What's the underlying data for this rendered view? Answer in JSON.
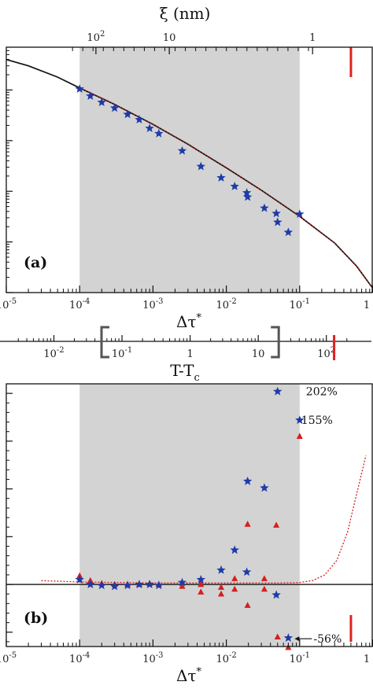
{
  "chart_data": [
    {
      "panel": "a",
      "type": "scatter",
      "panel_label": "(a)",
      "xlabel": "Δτ*",
      "x2label": "ξ (nm)",
      "x2_tick_labels": [
        "10²",
        "10",
        "1"
      ],
      "x2_ticks_at_x": [
        0.0001667,
        0.00167,
        0.15
      ],
      "x_tick_labels": [
        "10⁻⁵",
        "10⁻⁴",
        "10⁻³",
        "10⁻²",
        "10⁻¹",
        "1"
      ],
      "x_ticks": [
        1e-05,
        0.0001,
        0.001,
        0.01,
        0.1,
        1
      ],
      "xscale": "log",
      "xlim": [
        1e-05,
        1
      ],
      "yscale": "log",
      "ylim": [
        1e-06,
        0.07
      ],
      "shaded_region_x": [
        0.0001,
        0.1
      ],
      "marker_x": 0.5,
      "curve": {
        "color": "#111111",
        "x": [
          1e-05,
          2e-05,
          5e-05,
          0.0001,
          0.0003,
          0.001,
          0.003,
          0.01,
          0.03,
          0.1,
          0.3,
          0.6,
          1.0
        ],
        "y": [
          0.04,
          0.03,
          0.018,
          0.011,
          0.0052,
          0.0021,
          0.00085,
          0.00029,
          0.000105,
          3.2e-05,
          9.5e-06,
          3.3e-06,
          1.2e-06
        ]
      },
      "series": [
        {
          "color": "#1e3ba8",
          "marker": "star",
          "x": [
            0.0001,
            0.00014,
            0.0002,
            0.0003,
            0.00045,
            0.00065,
            0.0009,
            0.0012,
            0.0025,
            0.0045,
            0.0085,
            0.013,
            0.019,
            0.0195,
            0.033,
            0.048,
            0.05,
            0.07,
            0.1
          ],
          "y": [
            0.0105,
            0.0076,
            0.0057,
            0.0044,
            0.0033,
            0.0026,
            0.00175,
            0.00138,
            0.00063,
            0.00031,
            0.000185,
            0.000125,
            9.35e-05,
            7.7e-05,
            4.65e-05,
            3.65e-05,
            2.45e-05,
            1.55e-05,
            3.55e-05
          ]
        }
      ]
    },
    {
      "panel": "t",
      "type": "axis",
      "xlabel": "T-T",
      "xlabel_sub": "c",
      "xscale": "log",
      "xlim": [
        0.002,
        300
      ],
      "x_tick_labels": [
        "10⁻²",
        "10⁻¹",
        "1",
        "10",
        "10²"
      ],
      "x_ticks": [
        0.01,
        0.1,
        1,
        10,
        100
      ],
      "bracket_x": [
        0.05,
        20
      ],
      "marker_x": 130
    },
    {
      "panel": "b",
      "type": "scatter",
      "panel_label": "(b)",
      "xlabel": "Δτ*",
      "xscale": "log",
      "xlim": [
        1e-05,
        1
      ],
      "x_tick_labels": [
        "10⁻⁵",
        "10⁻⁴",
        "10⁻³",
        "10⁻²",
        "10⁻¹",
        "1"
      ],
      "x_ticks": [
        1e-05,
        0.0001,
        0.001,
        0.01,
        0.1,
        1
      ],
      "ylim": [
        -65,
        210
      ],
      "shaded_region_x": [
        0.0001,
        0.1
      ],
      "marker_x": 0.5,
      "annotations": [
        {
          "text": "202%",
          "x": 0.1,
          "y": 202
        },
        {
          "text": "155%",
          "x": 0.1,
          "y": 172
        },
        {
          "text": "-56%",
          "x": 0.14,
          "y": -56
        }
      ],
      "dotted_curve": {
        "color": "#d42020",
        "x": [
          3e-05,
          0.0001,
          0.001,
          0.01,
          0.05,
          0.1,
          0.15,
          0.22,
          0.32,
          0.45,
          0.6,
          0.8
        ],
        "y": [
          4,
          2.5,
          1.5,
          1.5,
          1.5,
          2,
          4,
          10,
          25,
          55,
          95,
          135
        ]
      },
      "series": [
        {
          "name": "",
          "color": "#1e3ba8",
          "marker": "star",
          "x": [
            0.0001,
            0.00014,
            0.0002,
            0.0003,
            0.00045,
            0.00065,
            0.0009,
            0.0012,
            0.0025,
            0.0045,
            0.0085,
            0.013,
            0.019,
            0.0195,
            0.033,
            0.048,
            0.05,
            0.07,
            0.1
          ],
          "y": [
            5,
            0,
            -1,
            -2,
            -1,
            0,
            0,
            -1,
            2,
            5,
            15,
            36,
            13,
            108,
            101,
            -11,
            202,
            -56,
            172
          ]
        },
        {
          "name": "",
          "color": "#d42020",
          "marker": "triangle",
          "x": [
            0.0001,
            0.00014,
            0.0002,
            0.0003,
            0.00045,
            0.00065,
            0.0009,
            0.0012,
            0.0025,
            0.0045,
            0.0045,
            0.0085,
            0.0085,
            0.013,
            0.013,
            0.0195,
            0.0195,
            0.033,
            0.033,
            0.048,
            0.05,
            0.07,
            0.1
          ],
          "y": [
            9,
            4,
            1,
            0,
            0,
            0,
            1,
            0,
            -2,
            0,
            -8,
            -3,
            -10,
            6,
            -5,
            63,
            -22,
            6,
            -5,
            62,
            -55,
            -66,
            155
          ]
        }
      ]
    }
  ]
}
